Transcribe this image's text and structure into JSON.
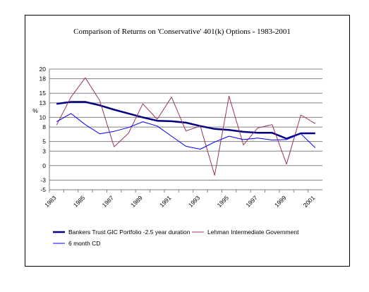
{
  "chart_data": {
    "type": "line",
    "title": "Comparison of Returns on 'Conservative' 401(k) Options - 1983-2001",
    "ylabel": "%",
    "xlabel": "",
    "ylim": [
      -5,
      20
    ],
    "yticks": [
      -5,
      -3,
      0,
      3,
      5,
      8,
      10,
      13,
      15,
      18,
      20
    ],
    "grid": true,
    "legend_position": "bottom",
    "x": [
      1983,
      1984,
      1985,
      1986,
      1987,
      1988,
      1989,
      1990,
      1991,
      1992,
      1993,
      1994,
      1995,
      1996,
      1997,
      1998,
      1999,
      2000,
      2001
    ],
    "xtick_labels": [
      "1983",
      "1985",
      "1987",
      "1989",
      "1991",
      "1993",
      "1995",
      "1997",
      "1999",
      "2001"
    ],
    "series": [
      {
        "name": "Bankers Trust GIC Portfolio -2.5 year duration",
        "color": "#000080",
        "width": 2.5,
        "values": [
          12.8,
          13.2,
          13.2,
          12.5,
          11.6,
          10.8,
          10.0,
          9.3,
          9.2,
          8.9,
          8.2,
          7.6,
          7.4,
          7.0,
          6.8,
          6.8,
          5.6,
          6.7,
          6.7
        ]
      },
      {
        "name": "Lehman Intermediate Government",
        "color": "#993366",
        "width": 1,
        "values": [
          8.4,
          14.2,
          18.2,
          13.5,
          3.9,
          6.7,
          12.8,
          9.6,
          14.2,
          7.2,
          8.2,
          -2.0,
          14.4,
          4.3,
          7.8,
          8.5,
          0.3,
          10.5,
          8.7
        ]
      },
      {
        "name": "6 month CD",
        "color": "#0000ff",
        "width": 1,
        "values": [
          9.1,
          10.8,
          8.5,
          6.6,
          7.1,
          7.9,
          9.1,
          8.2,
          6.1,
          4.0,
          3.4,
          4.9,
          6.1,
          5.4,
          5.7,
          5.3,
          5.4,
          6.6,
          3.7
        ]
      }
    ]
  }
}
